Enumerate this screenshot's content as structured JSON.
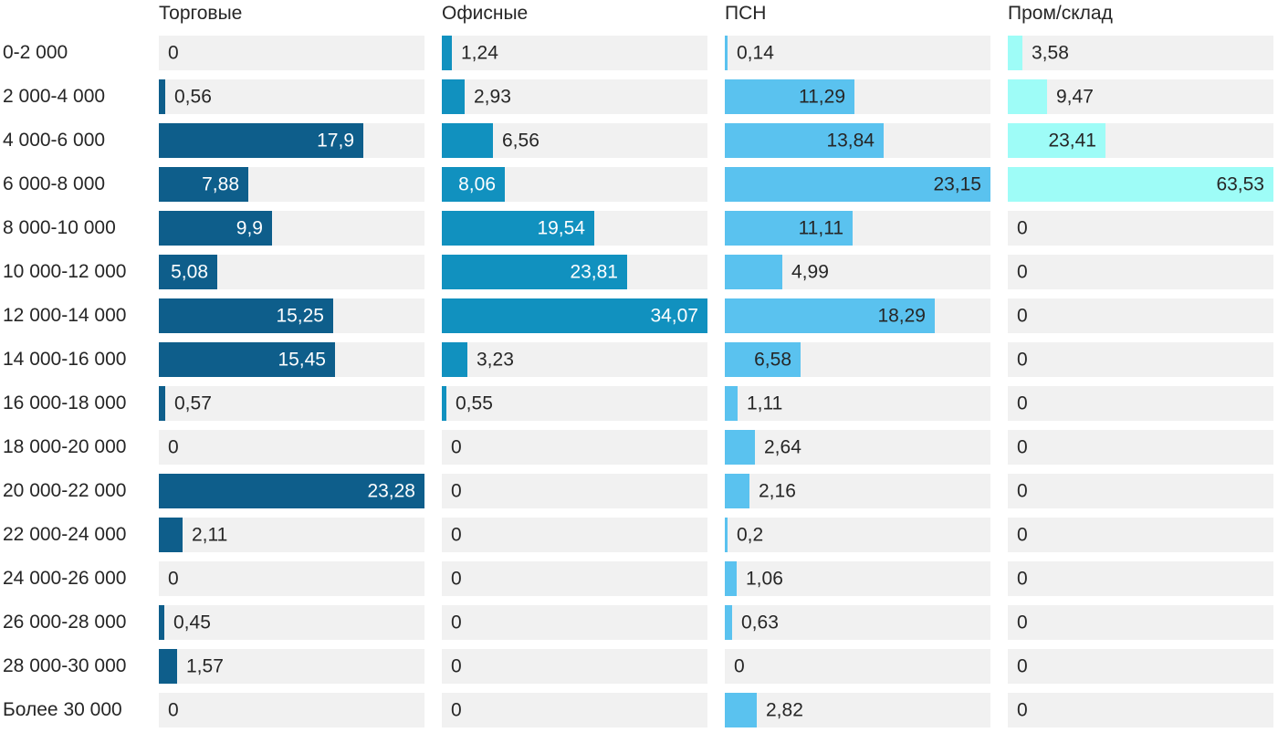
{
  "chart_data": {
    "type": "bar",
    "orientation": "horizontal",
    "title": "",
    "xlabel": "",
    "ylabel": "",
    "legend_position": "column headers on top",
    "grid": false,
    "track_color": "#f1f1f1",
    "text_color": "#262626",
    "categories": [
      "0-2 000",
      "2 000-4 000",
      "4 000-6 000",
      "6 000-8 000",
      "8 000-10 000",
      "10 000-12 000",
      "12 000-14 000",
      "14 000-16 000",
      "16 000-18 000",
      "18 000-20 000",
      "20 000-22 000",
      "22 000-24 000",
      "24 000-26 000",
      "26 000-28 000",
      "28 000-30 000",
      "Более 30 000"
    ],
    "series": [
      {
        "name": "Торговые",
        "color": "#0e5e8b",
        "inside_label_color": "#ffffff",
        "xmax": 23.28,
        "values": [
          0,
          0.56,
          17.9,
          7.88,
          9.9,
          5.08,
          15.25,
          15.45,
          0.57,
          0,
          23.28,
          2.11,
          0,
          0.45,
          1.57,
          0
        ],
        "labels": [
          "0",
          "0,56",
          "17,9",
          "7,88",
          "9,9",
          "5,08",
          "15,25",
          "15,45",
          "0,57",
          "0",
          "23,28",
          "2,11",
          "0",
          "0,45",
          "1,57",
          "0"
        ]
      },
      {
        "name": "Офисные",
        "color": "#1191bf",
        "inside_label_color": "#ffffff",
        "xmax": 34.07,
        "values": [
          1.24,
          2.93,
          6.56,
          8.06,
          19.54,
          23.81,
          34.07,
          3.23,
          0.55,
          0,
          0,
          0,
          0,
          0,
          0,
          0
        ],
        "labels": [
          "1,24",
          "2,93",
          "6,56",
          "8,06",
          "19,54",
          "23,81",
          "34,07",
          "3,23",
          "0,55",
          "0",
          "0",
          "0",
          "0",
          "0",
          "0",
          "0"
        ]
      },
      {
        "name": "ПСН",
        "color": "#5ac2ef",
        "inside_label_color": "#262626",
        "xmax": 23.15,
        "values": [
          0.14,
          11.29,
          13.84,
          23.15,
          11.11,
          4.99,
          18.29,
          6.58,
          1.11,
          2.64,
          2.16,
          0.2,
          1.06,
          0.63,
          0,
          2.82
        ],
        "labels": [
          "0,14",
          "11,29",
          "13,84",
          "23,15",
          "11,11",
          "4,99",
          "18,29",
          "6,58",
          "1,11",
          "2,64",
          "2,16",
          "0,2",
          "1,06",
          "0,63",
          "0",
          "2,82"
        ]
      },
      {
        "name": "Пром/склад",
        "color": "#9efcf7",
        "inside_label_color": "#262626",
        "xmax": 63.53,
        "values": [
          3.58,
          9.47,
          23.41,
          63.53,
          0,
          0,
          0,
          0,
          0,
          0,
          0,
          0,
          0,
          0,
          0,
          0
        ],
        "labels": [
          "3,58",
          "9,47",
          "23,41",
          "63,53",
          "0",
          "0",
          "0",
          "0",
          "0",
          "0",
          "0",
          "0",
          "0",
          "0",
          "0",
          "0"
        ]
      }
    ]
  }
}
